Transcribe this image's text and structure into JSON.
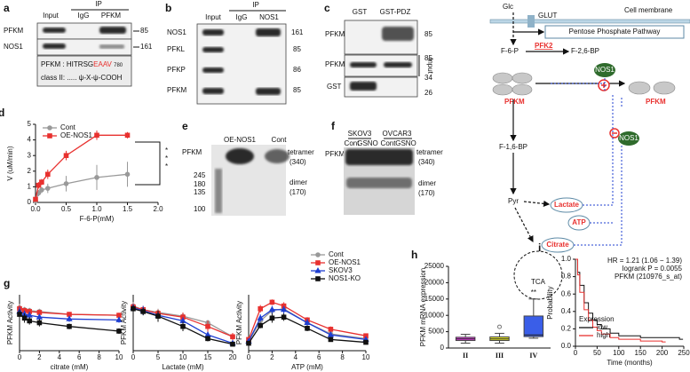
{
  "panels": {
    "a": {
      "label": "a",
      "ip": "IP",
      "columns": [
        "Input",
        "IgG",
        "PFKM"
      ],
      "rows": [
        "PFKM",
        "NOS1"
      ],
      "markers": [
        "85",
        "161"
      ],
      "motif": {
        "name": "PFKM :",
        "prefix": "HITRSG",
        "highlight": "EAAV",
        "position": "780"
      },
      "class_motif": "class II:  ..... ψ-X-ψ-COOH"
    },
    "b": {
      "label": "b",
      "ip": "IP",
      "columns": [
        "Input",
        "IgG",
        "NOS1"
      ],
      "rows": [
        "NOS1",
        "PFKL",
        "PFKP",
        "PFKM"
      ],
      "markers": [
        "161",
        "85",
        "86",
        "85"
      ]
    },
    "c": {
      "label": "c",
      "columns": [
        "GST",
        "GST-PDZ"
      ],
      "rows": [
        "PFKM",
        "PFKM",
        "GST"
      ],
      "markers": [
        "85",
        "85",
        "34",
        "26"
      ],
      "input": "Input"
    },
    "e": {
      "label": "e",
      "row": "PFKM",
      "columns": [
        "OE-NOS1",
        "Cont"
      ],
      "markers": [
        "245",
        "180",
        "135",
        "100"
      ],
      "bands": [
        "tetramer",
        "(340)",
        "dimer",
        "(170)"
      ]
    },
    "f": {
      "label": "f",
      "groups": [
        "SKOV3",
        "OVCAR3"
      ],
      "columns": [
        "Cont",
        "GSNO",
        "Cont",
        "GSNO"
      ],
      "row": "PFKM",
      "bands": [
        "tetramer",
        "(340)",
        "dimer",
        "(170)"
      ]
    },
    "diagram": {
      "glc": "Glc",
      "glut": "GLUT",
      "membrane": "Cell membrane",
      "ppp": "Pentose Phosphate Pathway",
      "f6p": "F-6-P",
      "pfk2": "PFK2",
      "f26bp": "F-2,6-BP",
      "nos1_top": "NOS1",
      "pfkm_left": "PFKM",
      "pfkm_right": "PFKM",
      "f16bp": "F-1,6-BP",
      "nos1_bottom": "NOS1",
      "pyr": "Pyr",
      "lactate": "Lactate",
      "atp": "ATP",
      "citrate": "Citrate",
      "tca": "TCA"
    }
  },
  "chart_data": [
    {
      "type": "line",
      "panel": "d",
      "xlabel": "F-6-P(mM)",
      "ylabel": "V (uM/min)",
      "x": [
        0,
        0.05,
        0.1,
        0.2,
        0.5,
        1.0,
        1.5
      ],
      "series": [
        {
          "name": "Cont",
          "color": "#999999",
          "marker": "circle",
          "values": [
            0.1,
            0.6,
            0.8,
            0.9,
            1.2,
            1.6,
            1.8
          ],
          "errors": [
            0.1,
            0.2,
            0.2,
            0.3,
            0.5,
            0.8,
            0.8
          ]
        },
        {
          "name": "OE-NOS1",
          "color": "#e8312f",
          "marker": "square",
          "values": [
            0.2,
            1.1,
            1.3,
            1.8,
            3.0,
            4.3,
            4.3
          ],
          "errors": [
            0.1,
            0.2,
            0.2,
            0.3,
            0.3,
            0.3,
            0.2
          ]
        }
      ],
      "xlim": [
        0,
        2
      ],
      "xticks": [
        {
          "value": 0,
          "label": "0.0"
        },
        0.5,
        {
          "value": 1,
          "label": "1.0"
        },
        1.5,
        {
          "value": 2,
          "label": "2.0"
        }
      ],
      "ylim": [
        0,
        5
      ],
      "yticks": [
        0,
        1,
        2,
        3,
        4,
        5
      ],
      "legend": "upper left",
      "annotations": [
        "*",
        "*",
        "*"
      ]
    },
    {
      "type": "line",
      "panel": "g",
      "xlabel": "citrate (mM)",
      "ylabel": "PFKM Activity",
      "x": [
        0,
        0.5,
        1,
        2,
        5,
        10
      ],
      "series": [
        {
          "color": "#999999",
          "marker": "circle",
          "values": [
            4.6,
            4.4,
            4.3,
            4.2,
            3.9,
            3.8
          ],
          "errors": [
            0.4,
            0.3,
            0.3,
            0.3,
            0.2,
            0.2
          ]
        },
        {
          "color": "#e8312f",
          "marker": "square",
          "values": [
            4.5,
            4.3,
            4.2,
            4.1,
            3.9,
            3.8
          ],
          "errors": [
            0.4,
            0.3,
            0.3,
            0.2,
            0.2,
            0.2
          ]
        },
        {
          "color": "#1f3fd1",
          "marker": "triangle",
          "values": [
            4.2,
            3.9,
            3.8,
            3.6,
            3.4,
            3.3
          ],
          "errors": [
            0.5,
            0.4,
            0.4,
            0.3,
            0.3,
            0.3
          ]
        },
        {
          "color": "#111111",
          "marker": "square",
          "values": [
            3.9,
            3.5,
            3.2,
            3.0,
            2.6,
            2.1
          ],
          "errors": [
            0.5,
            0.5,
            0.4,
            0.4,
            0.3,
            0.3
          ]
        }
      ],
      "xlim": [
        0,
        10
      ],
      "xticks": [
        0,
        2,
        4,
        6,
        8,
        10
      ],
      "ylim": [
        0,
        6
      ]
    },
    {
      "type": "line",
      "xlabel": "Lactate (mM)",
      "ylabel": "PFKM Activity",
      "x": [
        0,
        2,
        5,
        10,
        15,
        20
      ],
      "series": [
        {
          "color": "#999999",
          "marker": "circle",
          "values": [
            4.8,
            4.4,
            4.1,
            3.7,
            3.0,
            1.5
          ],
          "errors": [
            0.4,
            0.4,
            0.4,
            0.3,
            0.3,
            0.3
          ]
        },
        {
          "color": "#e8312f",
          "marker": "square",
          "values": [
            4.7,
            4.4,
            4.0,
            3.6,
            2.6,
            1.5
          ],
          "errors": [
            0.4,
            0.4,
            0.4,
            0.5,
            0.6,
            0.4
          ]
        },
        {
          "color": "#1f3fd1",
          "marker": "triangle",
          "values": [
            4.6,
            4.3,
            3.8,
            3.2,
            1.7,
            0.8
          ],
          "errors": [
            0.4,
            0.5,
            0.4,
            0.4,
            0.3,
            0.2
          ]
        },
        {
          "color": "#111111",
          "marker": "square",
          "values": [
            4.5,
            4.2,
            3.7,
            2.6,
            1.3,
            0.7
          ],
          "errors": [
            0.4,
            0.4,
            0.6,
            0.5,
            0.3,
            0.2
          ]
        }
      ],
      "xlim": [
        0,
        20
      ],
      "xticks": [
        0,
        5,
        10,
        15,
        20
      ],
      "ylim": [
        0,
        6
      ]
    },
    {
      "type": "line",
      "xlabel": "ATP (mM)",
      "ylabel": "PFKM Activity",
      "x": [
        0,
        1,
        2,
        3,
        5,
        7,
        10
      ],
      "series": [
        {
          "name": "Cont",
          "color": "#999999",
          "marker": "circle",
          "values": [
            1.0,
            3.2,
            4.3,
            4.5,
            3.0,
            1.8,
            1.3
          ],
          "errors": [
            0.2,
            0.3,
            0.4,
            0.4,
            0.3,
            0.3,
            0.2
          ]
        },
        {
          "name": "OE-NOS1",
          "color": "#e8312f",
          "marker": "square",
          "values": [
            1.2,
            4.5,
            5.2,
            4.8,
            3.3,
            2.3,
            1.6
          ],
          "errors": [
            0.3,
            0.4,
            0.3,
            0.4,
            0.3,
            0.3,
            0.2
          ]
        },
        {
          "name": "SKOV3",
          "color": "#1f3fd1",
          "marker": "triangle",
          "values": [
            1.0,
            3.5,
            4.4,
            4.4,
            3.0,
            1.7,
            1.2
          ],
          "errors": [
            0.2,
            0.4,
            0.4,
            0.4,
            0.4,
            0.3,
            0.2
          ]
        },
        {
          "name": "NOS1-KO",
          "color": "#111111",
          "marker": "square",
          "values": [
            0.8,
            2.7,
            3.5,
            3.6,
            2.4,
            1.2,
            0.9
          ],
          "errors": [
            0.2,
            0.3,
            0.5,
            0.4,
            0.3,
            0.2,
            0.2
          ]
        }
      ],
      "xlim": [
        0,
        10
      ],
      "xticks": [
        0,
        2,
        4,
        6,
        8,
        10
      ],
      "ylim": [
        0,
        6
      ],
      "legend": "upper right"
    },
    {
      "type": "box",
      "panel": "h",
      "ylabel": "PFKM mRNA expression",
      "categories": [
        "II",
        "III",
        "IV"
      ],
      "colors": [
        "#e040e0",
        "#e8e830",
        "#3a5ee8"
      ],
      "boxes": [
        {
          "min": 1500,
          "q1": 2300,
          "median": 2800,
          "q3": 3300,
          "max": 4200
        },
        {
          "min": 1500,
          "q1": 2300,
          "median": 2800,
          "q3": 3400,
          "max": 4500
        },
        {
          "min": 3000,
          "q1": 3500,
          "median": 4000,
          "q3": 9800,
          "max": 15000
        }
      ],
      "outliers": [
        [],
        [
          6500
        ],
        []
      ],
      "ylim": [
        0,
        25000
      ],
      "yticks": [
        0,
        5000,
        10000,
        15000,
        20000,
        25000
      ],
      "annotations": [
        "**"
      ]
    },
    {
      "type": "line",
      "panel": "i",
      "steps": true,
      "xlabel": "Time (months)",
      "ylabel": "Probability",
      "series": [
        {
          "name": "low",
          "color": "#111111",
          "x": [
            0,
            5,
            10,
            20,
            30,
            40,
            50,
            60,
            80,
            100,
            150,
            240
          ],
          "values": [
            1,
            0.85,
            0.7,
            0.5,
            0.38,
            0.3,
            0.25,
            0.2,
            0.15,
            0.12,
            0.1,
            0.08
          ]
        },
        {
          "name": "high",
          "color": "#e8312f",
          "x": [
            0,
            5,
            10,
            20,
            30,
            40,
            50,
            60,
            80,
            100,
            150,
            200
          ],
          "values": [
            1,
            0.82,
            0.62,
            0.42,
            0.3,
            0.22,
            0.18,
            0.14,
            0.1,
            0.08,
            0.06,
            0.05
          ]
        }
      ],
      "xlim": [
        0,
        250
      ],
      "xticks": [
        0,
        50,
        100,
        150,
        200,
        250
      ],
      "ylim": [
        0,
        1
      ],
      "yticks": [
        {
          "value": 0,
          "label": "0.0"
        },
        0.2,
        0.4,
        0.6,
        0.8,
        {
          "value": 1,
          "label": "1.0"
        }
      ],
      "legend": "lower left",
      "legend_title": "Expression",
      "annotations": [
        "HR = 1.21 (1.06 − 1.39)",
        "logrank P = 0.0055",
        "PFKM (210976_s_at)"
      ]
    }
  ]
}
